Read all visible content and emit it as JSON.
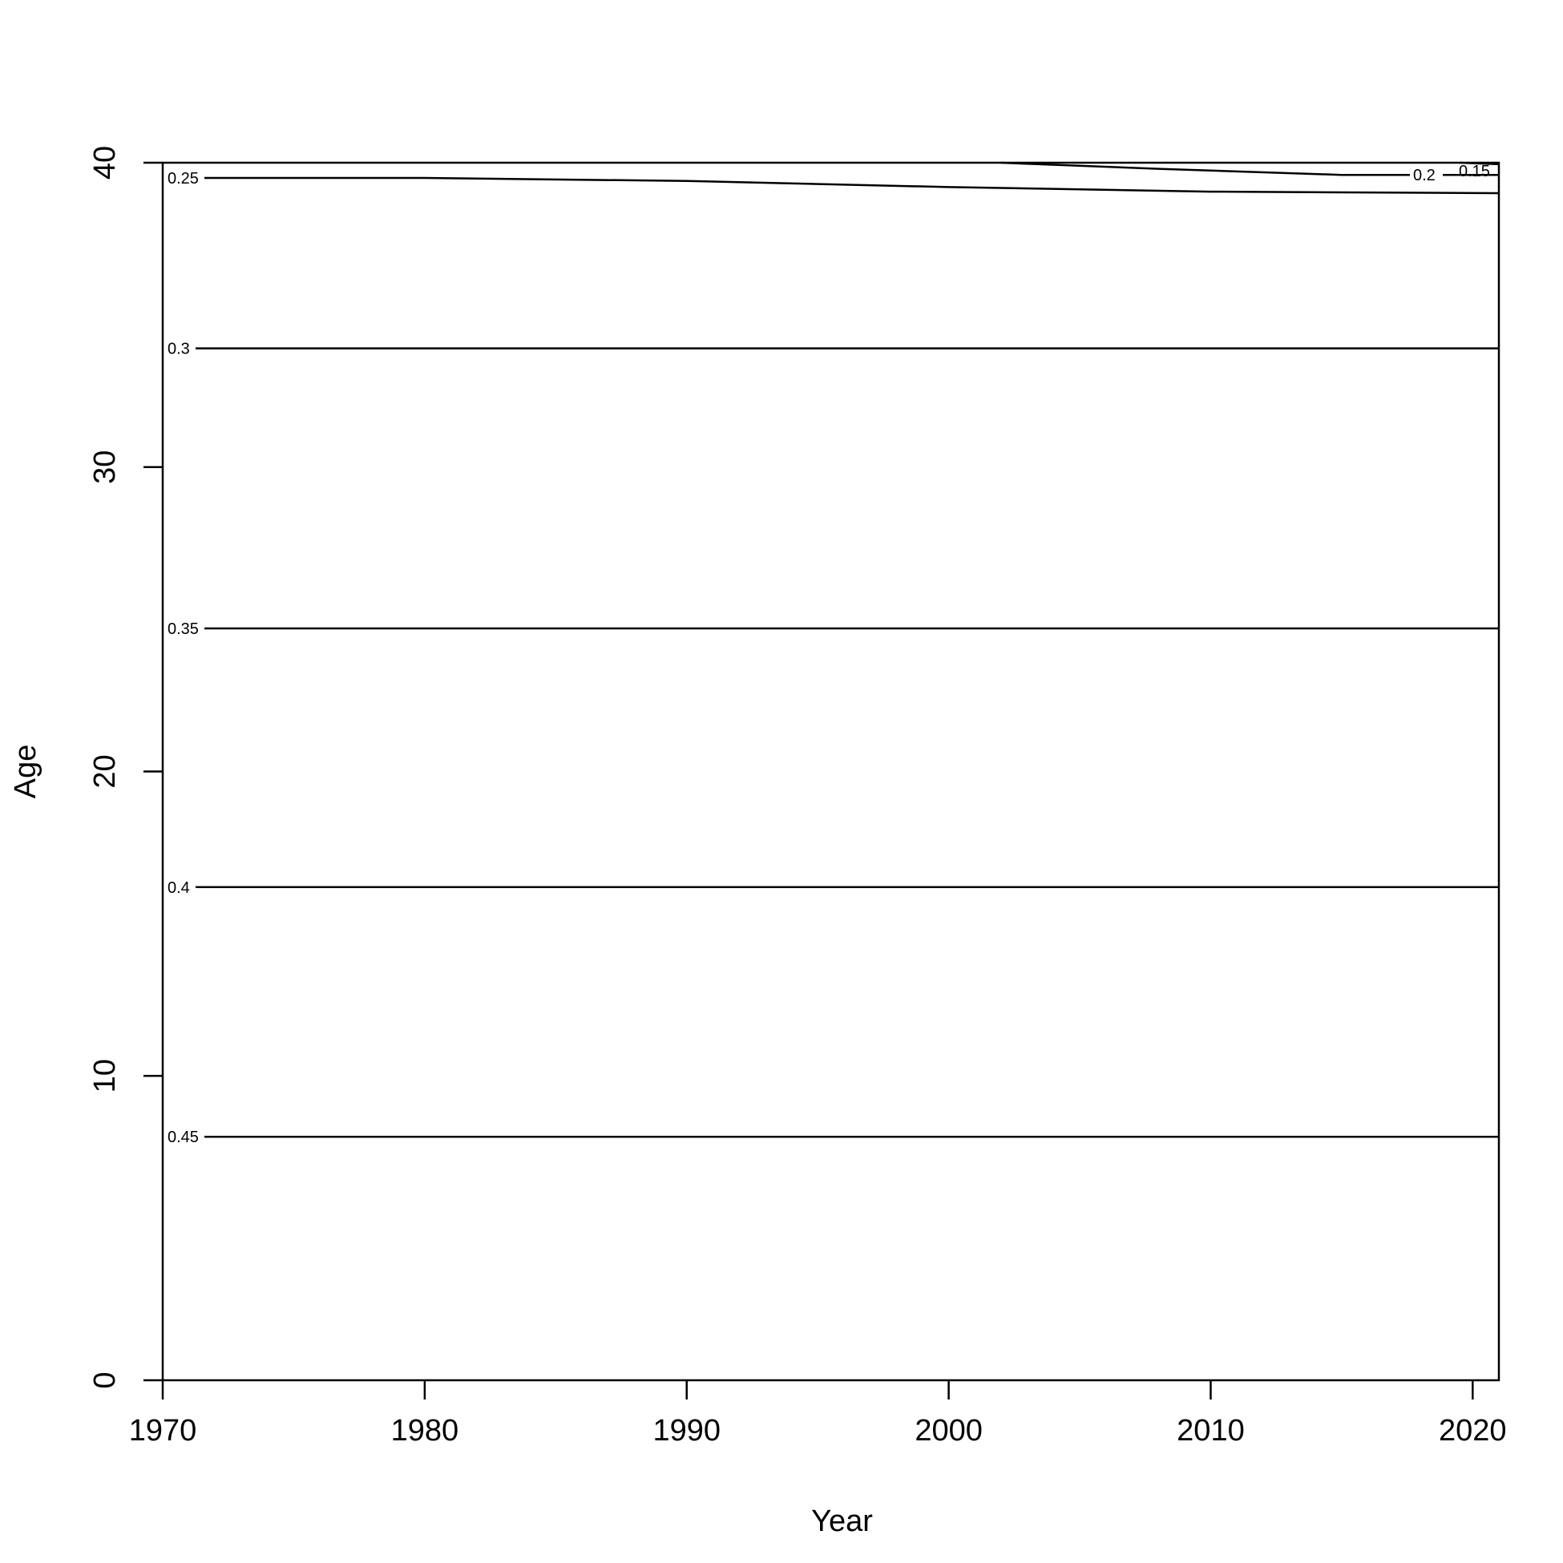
{
  "chart_data": {
    "type": "contour",
    "xlabel": "Year",
    "ylabel": "Age",
    "xlim": [
      1970,
      2021
    ],
    "ylim": [
      0,
      40
    ],
    "xticks": [
      1970,
      1980,
      1990,
      2000,
      2010,
      2020
    ],
    "yticks": [
      0,
      10,
      20,
      30,
      40
    ],
    "contours": [
      {
        "level": "0.45",
        "points": [
          [
            1970,
            8
          ],
          [
            2021,
            8
          ]
        ]
      },
      {
        "level": "0.4",
        "points": [
          [
            1970,
            16.2
          ],
          [
            2021,
            16.2
          ]
        ]
      },
      {
        "level": "0.35",
        "points": [
          [
            1970,
            24.7
          ],
          [
            2021,
            24.7
          ]
        ]
      },
      {
        "level": "0.3",
        "points": [
          [
            1970,
            33.9
          ],
          [
            2021,
            33.9
          ]
        ]
      },
      {
        "level": "0.25",
        "points": [
          [
            1970,
            39.5
          ],
          [
            1980,
            39.5
          ],
          [
            1990,
            39.4
          ],
          [
            2000,
            39.2
          ],
          [
            2010,
            39.05
          ],
          [
            2021,
            39.0
          ]
        ]
      },
      {
        "level": "0.2",
        "points": [
          [
            2002,
            40
          ],
          [
            2008,
            39.8
          ],
          [
            2015,
            39.6
          ],
          [
            2021,
            39.6
          ]
        ]
      },
      {
        "level": "0.15",
        "points": [
          [
            2019.5,
            40
          ],
          [
            2021,
            39.95
          ]
        ]
      }
    ]
  }
}
